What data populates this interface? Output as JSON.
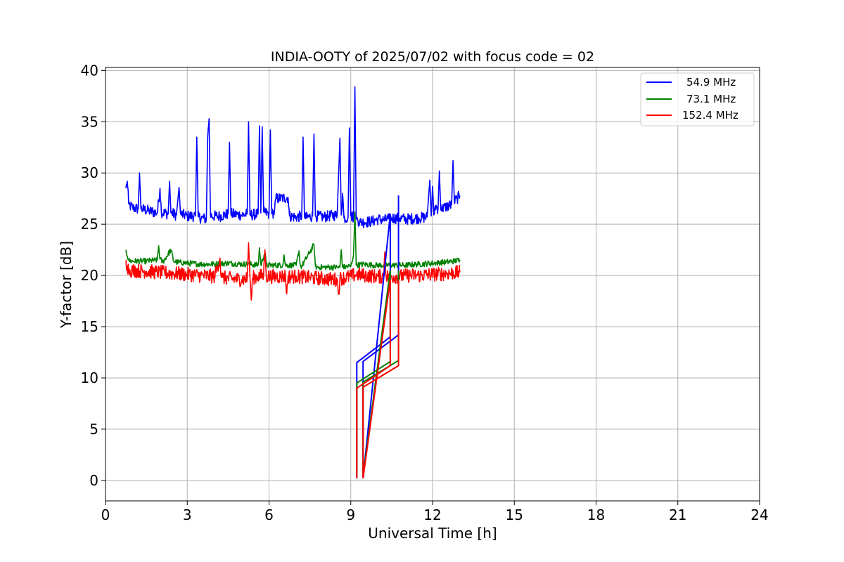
{
  "chart_data": {
    "type": "line",
    "title": "INDIA-OOTY of 2025/07/02 with focus code = 02",
    "xlabel": "Universal Time [h]",
    "ylabel": "Y-factor [dB]",
    "xlim": [
      0,
      24
    ],
    "ylim": [
      -2,
      40.3
    ],
    "xticks": [
      0,
      3,
      6,
      9,
      12,
      15,
      18,
      21,
      24
    ],
    "yticks": [
      0,
      5,
      10,
      15,
      20,
      25,
      30,
      35,
      40
    ],
    "grid": true,
    "legend_position": "top-right",
    "series": [
      {
        "name": "54.9 MHz",
        "color": "#0000ff",
        "x": [
          0.75,
          0.8,
          0.85,
          0.9,
          1.0,
          1.2,
          1.25,
          1.3,
          1.6,
          1.9,
          2.0,
          2.05,
          2.3,
          2.35,
          2.4,
          2.6,
          2.7,
          2.75,
          3.0,
          3.3,
          3.35,
          3.4,
          3.7,
          3.75,
          3.8,
          3.85,
          3.9,
          4.2,
          4.5,
          4.55,
          4.6,
          5.0,
          5.2,
          5.25,
          5.3,
          5.6,
          5.65,
          5.7,
          5.75,
          5.8,
          6.0,
          6.05,
          6.1,
          6.2,
          6.25,
          6.7,
          6.75,
          7.0,
          7.2,
          7.25,
          7.3,
          7.6,
          7.65,
          7.7,
          8.0,
          8.2,
          8.5,
          8.6,
          8.65,
          8.7,
          8.75,
          8.9,
          8.95,
          9.0,
          9.1,
          9.15,
          9.2,
          9.25,
          9.35,
          9.5,
          9.8,
          10.0,
          10.2,
          10.4,
          10.5,
          10.8,
          11.0,
          11.5,
          11.8,
          11.9,
          11.95,
          12.0,
          12.05,
          12.1,
          12.2,
          12.25,
          12.3,
          12.5,
          12.7,
          12.75,
          12.8,
          12.9,
          13.0
        ],
        "values": [
          28.5,
          29.2,
          27.0,
          26.8,
          26.6,
          26.5,
          30.0,
          26.5,
          26.3,
          26.1,
          28.5,
          26.2,
          26.0,
          29.2,
          26.1,
          25.9,
          28.6,
          26.0,
          25.8,
          25.8,
          33.5,
          25.7,
          25.5,
          33.5,
          35.3,
          25.9,
          25.8,
          25.8,
          26.0,
          33.0,
          26.0,
          25.9,
          26.0,
          35.0,
          25.9,
          26.0,
          34.6,
          26.1,
          34.5,
          26.2,
          26.0,
          34.2,
          26.0,
          26.2,
          27.5,
          27.6,
          25.8,
          25.7,
          25.8,
          33.5,
          25.6,
          25.8,
          33.8,
          25.8,
          25.7,
          25.8,
          25.9,
          33.4,
          25.9,
          28.0,
          25.6,
          25.7,
          34.4,
          25.8,
          25.7,
          38.4,
          25.5,
          25.4,
          25.2,
          25.2,
          25.3,
          25.5,
          25.4,
          25.5,
          25.6,
          25.6,
          25.5,
          25.6,
          25.7,
          29.3,
          25.8,
          28.7,
          25.9,
          26.8,
          26.5,
          30.2,
          26.5,
          26.7,
          26.9,
          31.2,
          27.2,
          27.5,
          27.8
        ]
      },
      {
        "name": "73.1 MHz",
        "color": "#008000",
        "x": [
          0.75,
          0.8,
          0.85,
          0.9,
          1.0,
          1.5,
          1.9,
          1.95,
          2.0,
          2.1,
          2.4,
          2.5,
          2.6,
          3.0,
          3.5,
          4.0,
          4.5,
          5.0,
          5.2,
          5.25,
          5.3,
          5.6,
          5.65,
          5.7,
          5.85,
          5.9,
          6.0,
          6.5,
          6.55,
          6.6,
          7.0,
          7.1,
          7.15,
          7.2,
          7.65,
          7.7,
          7.75,
          8.0,
          8.5,
          8.6,
          8.65,
          8.7,
          9.0,
          9.1,
          9.15,
          9.2,
          9.5,
          9.8,
          10.0,
          10.5,
          10.7,
          11.0,
          11.5,
          12.0,
          12.5,
          13.0
        ],
        "values": [
          22.5,
          21.9,
          21.5,
          21.4,
          21.4,
          21.4,
          21.5,
          22.9,
          21.6,
          21.3,
          22.5,
          21.4,
          21.3,
          21.2,
          21.1,
          21.1,
          21.2,
          21.1,
          21.1,
          21.2,
          21.1,
          21.0,
          22.7,
          21.0,
          22.3,
          21.0,
          21.0,
          21.0,
          22.0,
          21.0,
          21.0,
          22.4,
          20.9,
          20.9,
          23.0,
          20.9,
          20.8,
          20.8,
          20.8,
          20.8,
          22.5,
          20.8,
          20.9,
          22.0,
          26.2,
          21.0,
          21.1,
          21.0,
          21.0,
          21.0,
          21.0,
          21.0,
          21.1,
          21.2,
          21.3,
          21.5
        ]
      },
      {
        "name": "152.4 MHz",
        "color": "#ff0000",
        "x": [
          0.75,
          0.8,
          0.85,
          0.9,
          1.0,
          1.5,
          2.0,
          2.5,
          3.0,
          3.5,
          4.0,
          4.2,
          4.25,
          4.3,
          4.5,
          5.0,
          5.2,
          5.25,
          5.3,
          5.35,
          5.4,
          5.6,
          5.8,
          5.85,
          5.9,
          6.0,
          6.5,
          6.6,
          6.65,
          6.7,
          7.0,
          7.5,
          8.0,
          8.5,
          8.55,
          8.6,
          9.0,
          9.2,
          9.5,
          10.0,
          10.2,
          10.25,
          10.3,
          10.5,
          10.8,
          11.0,
          11.5,
          12.0,
          12.5,
          13.0
        ],
        "values": [
          21.5,
          20.9,
          20.6,
          20.5,
          20.5,
          20.4,
          20.3,
          20.2,
          20.1,
          20.0,
          19.9,
          21.7,
          19.8,
          19.8,
          19.7,
          19.6,
          19.7,
          23.2,
          19.8,
          17.6,
          19.8,
          19.9,
          20.0,
          22.5,
          19.9,
          19.9,
          19.9,
          20.0,
          18.2,
          19.9,
          19.9,
          19.8,
          19.7,
          19.6,
          18.2,
          19.7,
          19.9,
          20.1,
          20.0,
          19.9,
          19.9,
          22.3,
          19.9,
          19.9,
          19.9,
          20.0,
          20.0,
          20.1,
          20.2,
          20.3
        ]
      }
    ],
    "gap_segments": [
      {
        "name": "54.9 MHz",
        "color": "#0000ff",
        "x": [
          9.22,
          9.22,
          10.45,
          10.45,
          10.45,
          9.45,
          9.45,
          10.75,
          10.75
        ],
        "values": [
          0.2,
          11.5,
          14.0,
          26.0,
          26.0,
          0.2,
          11.6,
          14.2,
          27.8
        ]
      },
      {
        "name": "73.1 MHz",
        "color": "#008000",
        "x": [
          9.22,
          9.22,
          10.45,
          10.45,
          10.45,
          9.45,
          9.45,
          10.75,
          10.75
        ],
        "values": [
          0.4,
          9.5,
          11.6,
          20.5,
          20.5,
          0.4,
          9.6,
          11.7,
          20.5
        ]
      },
      {
        "name": "152.4 MHz",
        "color": "#ff0000",
        "x": [
          9.22,
          9.22,
          10.45,
          10.45,
          10.45,
          9.45,
          9.45,
          10.75,
          10.75
        ],
        "values": [
          0.2,
          9.0,
          11.2,
          19.6,
          19.6,
          0.2,
          9.1,
          11.2,
          19.5
        ]
      }
    ]
  }
}
